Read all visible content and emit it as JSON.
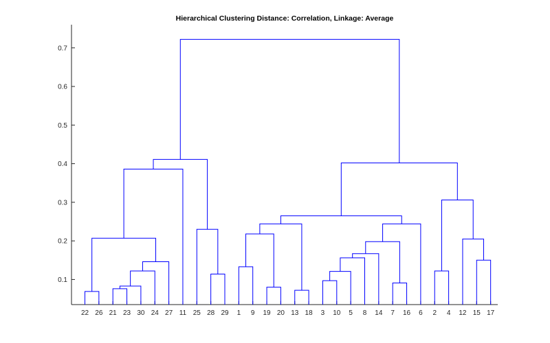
{
  "chart_data": {
    "type": "dendrogram",
    "title": "Hierarchical Clustering Distance: Correlation, Linkage: Average",
    "xlabel": "",
    "ylabel": "",
    "ylim": [
      0.035,
      0.76
    ],
    "yticks": [
      0.1,
      0.2,
      0.3,
      0.4,
      0.5,
      0.6,
      0.7
    ],
    "ytick_labels": [
      "0.1",
      "0.2",
      "0.3",
      "0.4",
      "0.5",
      "0.6",
      "0.7"
    ],
    "leaf_order": [
      "22",
      "26",
      "21",
      "23",
      "30",
      "24",
      "27",
      "11",
      "25",
      "28",
      "29",
      "1",
      "9",
      "19",
      "20",
      "13",
      "18",
      "3",
      "10",
      "5",
      "8",
      "14",
      "7",
      "16",
      "6",
      "2",
      "4",
      "12",
      "15",
      "17"
    ],
    "link_color": "#0000ff",
    "links": [
      {
        "left": "22",
        "right": "26",
        "height": 0.069
      },
      {
        "left": "21",
        "right": "23",
        "height": 0.076
      },
      {
        "left": "21,23",
        "right": "30",
        "height": 0.083
      },
      {
        "left": "21,23,30",
        "right": "24",
        "height": 0.122
      },
      {
        "left": "21,23,30,24",
        "right": "27",
        "height": 0.146
      },
      {
        "left": "22,26",
        "right": "21,23,30,24,27",
        "height": 0.207
      },
      {
        "left": "22,26,21,23,30,24,27",
        "right": "11",
        "height": 0.386
      },
      {
        "left": "28",
        "right": "29",
        "height": 0.114
      },
      {
        "left": "25",
        "right": "28,29",
        "height": 0.23
      },
      {
        "left": "22,26,21,23,30,24,27,11",
        "right": "25,28,29",
        "height": 0.411
      },
      {
        "left": "1",
        "right": "9",
        "height": 0.133
      },
      {
        "left": "19",
        "right": "20",
        "height": 0.08
      },
      {
        "left": "1,9",
        "right": "19,20",
        "height": 0.218
      },
      {
        "left": "13",
        "right": "18",
        "height": 0.072
      },
      {
        "left": "1,9,19,20",
        "right": "13,18",
        "height": 0.244
      },
      {
        "left": "3",
        "right": "10",
        "height": 0.097
      },
      {
        "left": "3,10",
        "right": "5",
        "height": 0.121
      },
      {
        "left": "3,10,5",
        "right": "8",
        "height": 0.156
      },
      {
        "left": "3,10,5,8",
        "right": "14",
        "height": 0.167
      },
      {
        "left": "7",
        "right": "16",
        "height": 0.091
      },
      {
        "left": "3,10,5,8,14",
        "right": "7,16",
        "height": 0.198
      },
      {
        "left": "3,10,5,8,14,7,16",
        "right": "6",
        "height": 0.244
      },
      {
        "left": "1,9,19,20,13,18",
        "right": "3,10,5,8,14,7,16,6",
        "height": 0.265
      },
      {
        "left": "2",
        "right": "4",
        "height": 0.122
      },
      {
        "left": "15",
        "right": "17",
        "height": 0.15
      },
      {
        "left": "12",
        "right": "15,17",
        "height": 0.205
      },
      {
        "left": "2,4",
        "right": "12,15,17",
        "height": 0.306
      },
      {
        "left": "1,9,19,20,13,18,3,10,5,8,14,7,16,6",
        "right": "2,4,12,15,17",
        "height": 0.402
      },
      {
        "left": "22,26,21,23,30,24,27,11,25,28,29",
        "right": "1,9,19,20,13,18,3,10,5,8,14,7,16,6,2,4,12,15,17",
        "height": 0.722
      }
    ]
  }
}
